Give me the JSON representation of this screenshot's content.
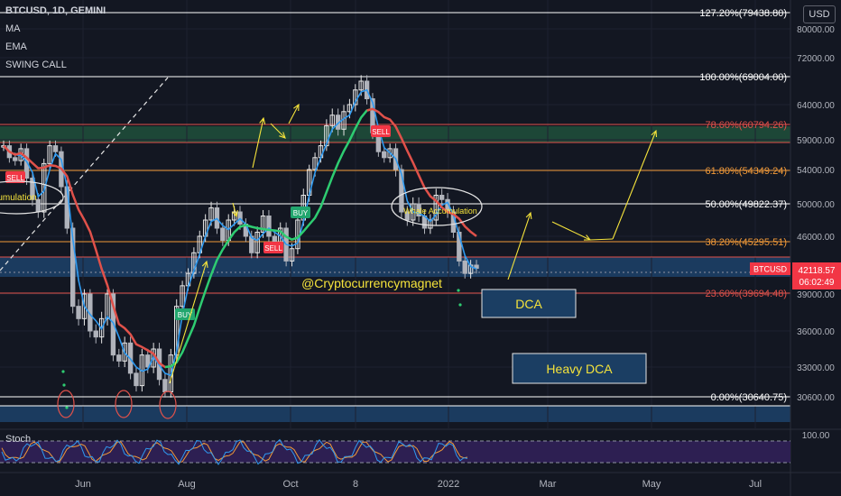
{
  "header": {
    "title": "BTCUSD, 1D, GEMINI",
    "indicators": [
      "MA",
      "EMA",
      "SWING CALL"
    ]
  },
  "currency_button": "USD",
  "colors": {
    "background": "#131722",
    "grid": "#1e2230",
    "candle_up": "#e6e6e6",
    "candle_down": "#b0b3bb",
    "ema_fast": "#2f9af0",
    "ma_green": "#2ecc71",
    "ma_red": "#e0514a",
    "fib_red": "#e0514a",
    "fib_orange": "#f29a38",
    "fib_white": "#ffffff",
    "arrow": "#f5e33b",
    "price_tag": "#f23645"
  },
  "chart_data": {
    "type": "candlestick",
    "symbol": "BTCUSD",
    "timeframe": "1D",
    "exchange": "GEMINI",
    "y_ticks": [
      "80000.00",
      "72000.00",
      "64000.00",
      "59000.00",
      "54000.00",
      "50000.00",
      "46000.00",
      "39000.00",
      "36000.00",
      "33000.00",
      "30600.00"
    ],
    "x_ticks": [
      "Jun",
      "Aug",
      "Oct",
      "8",
      "2022",
      "Mar",
      "May",
      "Jul"
    ],
    "fib_levels": [
      {
        "label": "127.20%(79438.80)",
        "price": 79438.8
      },
      {
        "label": "100.00%(69004.00)",
        "price": 69004.0
      },
      {
        "label": "78.60%(60794.26)",
        "price": 60794.26
      },
      {
        "label": "61.80%(54349.24)",
        "price": 54349.24
      },
      {
        "label": "50.00%(49822.37)",
        "price": 49822.37
      },
      {
        "label": "38.20%(45295.51)",
        "price": 45295.51
      },
      {
        "label": "23.60%(39694.48)",
        "price": 39694.48
      },
      {
        "label": "0.00%(30640.75)",
        "price": 30640.75
      }
    ],
    "current_price": {
      "symbol": "BTCUSD",
      "price": "42118.57",
      "countdown": "06:02:49"
    },
    "annotations": {
      "accumulation_left": "ccumulation",
      "whale_accumulation": "Whale Accumulation",
      "watermark": "@Cryptocurrencymagnet",
      "dca": "DCA",
      "heavy_dca": "Heavy DCA",
      "signals": [
        "SELL",
        "BUY",
        "BUY",
        "SELL",
        "SELL"
      ]
    },
    "closes": [
      58000,
      56000,
      55500,
      57500,
      53000,
      50500,
      49000,
      55000,
      58000,
      57000,
      52000,
      47000,
      38000,
      37000,
      39000,
      36000,
      35500,
      37000,
      39000,
      34000,
      33500,
      35000,
      32500,
      31500,
      34000,
      33000,
      34500,
      32000,
      31000,
      34000,
      38000,
      40000,
      41500,
      44000,
      46000,
      48000,
      49500,
      47000,
      45500,
      48000,
      49000,
      47500,
      46000,
      44000,
      46500,
      48500,
      46000,
      45000,
      47000,
      43000,
      44500,
      48000,
      51000,
      54000,
      56000,
      58000,
      61000,
      62500,
      60500,
      63000,
      64000,
      66500,
      68000,
      65000,
      60000,
      57000,
      56000,
      57500,
      54000,
      49000,
      48000,
      50000,
      48500,
      47000,
      48000,
      51000,
      50500,
      49000,
      46500,
      43000,
      41500,
      42500,
      42118
    ],
    "oscillator": {
      "name": "Stoch",
      "level": "100.00"
    }
  }
}
